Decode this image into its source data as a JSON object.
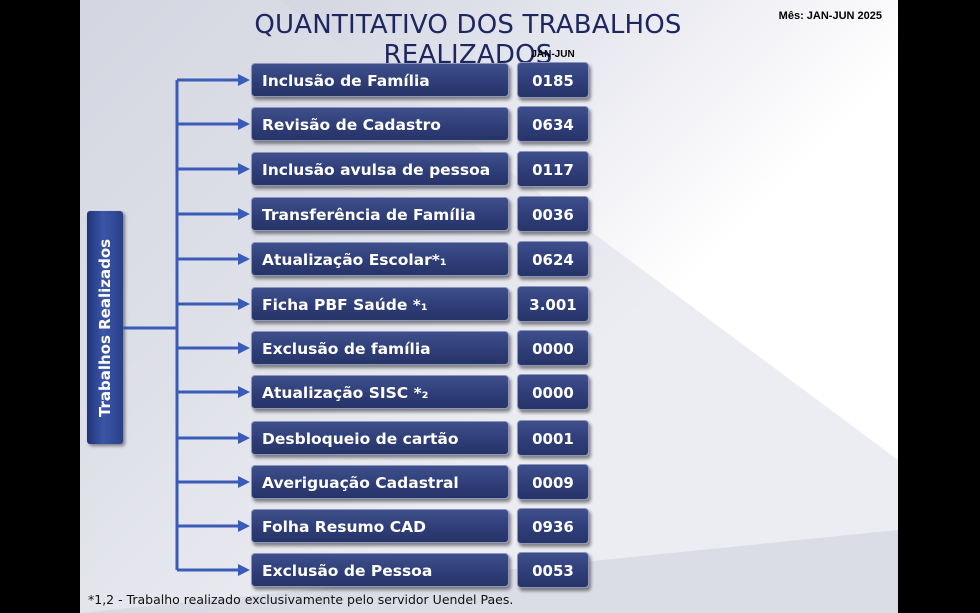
{
  "header": {
    "title": "QUANTITATIVO DOS TRABALHOS REALIZADOS",
    "period_label": "Mês: JAN-JUN 2025",
    "column_header": "JAN-JUN"
  },
  "side_label": "Trabalhos Realizados",
  "colors": {
    "box_fill": "#2f3e78",
    "connector": "#3a5bb8",
    "title": "#1d2660"
  },
  "items": [
    {
      "label": "Inclusão de Família",
      "value": "0185"
    },
    {
      "label": "Revisão de Cadastro",
      "value": "0634"
    },
    {
      "label": "Inclusão avulsa de pessoa",
      "value": "0117"
    },
    {
      "label": "Transferência de Família",
      "value": "0036"
    },
    {
      "label": "Atualização Escolar*₁",
      "value": "0624"
    },
    {
      "label": "Ficha PBF Saúde *₁",
      "value": "3.001"
    },
    {
      "label": "Exclusão de família",
      "value": "0000"
    },
    {
      "label": "Atualização SISC *₂",
      "value": "0000"
    },
    {
      "label": "Desbloqueio de cartão",
      "value": "0001"
    },
    {
      "label": "Averiguação Cadastral",
      "value": "0009"
    },
    {
      "label": "Folha Resumo CAD",
      "value": "0936"
    },
    {
      "label": "Exclusão de Pessoa",
      "value": "0053"
    }
  ],
  "footnote": "*1,2 - Trabalho realizado exclusivamente pelo servidor Uendel Paes."
}
